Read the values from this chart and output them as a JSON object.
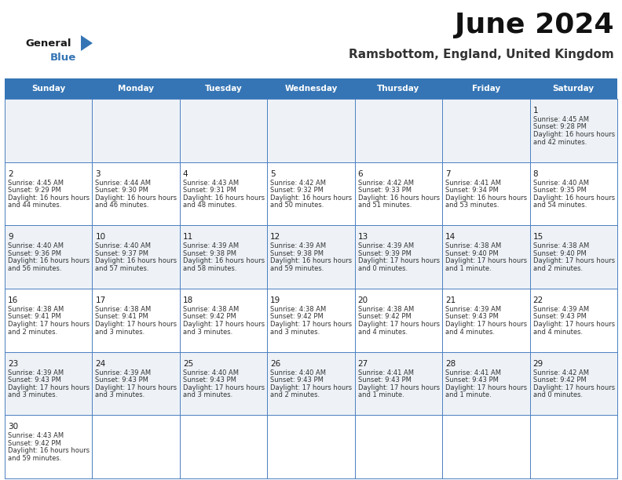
{
  "title": "June 2024",
  "subtitle": "Ramsbottom, England, United Kingdom",
  "days_of_week": [
    "Sunday",
    "Monday",
    "Tuesday",
    "Wednesday",
    "Thursday",
    "Friday",
    "Saturday"
  ],
  "header_bg": "#3575b5",
  "header_text": "#ffffff",
  "row0_bg": "#eef2f7",
  "row1_bg": "#ffffff",
  "grid_color": "#4a7fc0",
  "logo_general_color": "#1a1a1a",
  "logo_blue_color": "#3575b5",
  "day_num_color": "#1a1a1a",
  "cell_text_color": "#333333",
  "calendar_data": {
    "1": {
      "sunrise": "4:45 AM",
      "sunset": "9:28 PM",
      "daylight": "16 hours and 42 minutes."
    },
    "2": {
      "sunrise": "4:45 AM",
      "sunset": "9:29 PM",
      "daylight": "16 hours and 44 minutes."
    },
    "3": {
      "sunrise": "4:44 AM",
      "sunset": "9:30 PM",
      "daylight": "16 hours and 46 minutes."
    },
    "4": {
      "sunrise": "4:43 AM",
      "sunset": "9:31 PM",
      "daylight": "16 hours and 48 minutes."
    },
    "5": {
      "sunrise": "4:42 AM",
      "sunset": "9:32 PM",
      "daylight": "16 hours and 50 minutes."
    },
    "6": {
      "sunrise": "4:42 AM",
      "sunset": "9:33 PM",
      "daylight": "16 hours and 51 minutes."
    },
    "7": {
      "sunrise": "4:41 AM",
      "sunset": "9:34 PM",
      "daylight": "16 hours and 53 minutes."
    },
    "8": {
      "sunrise": "4:40 AM",
      "sunset": "9:35 PM",
      "daylight": "16 hours and 54 minutes."
    },
    "9": {
      "sunrise": "4:40 AM",
      "sunset": "9:36 PM",
      "daylight": "16 hours and 56 minutes."
    },
    "10": {
      "sunrise": "4:40 AM",
      "sunset": "9:37 PM",
      "daylight": "16 hours and 57 minutes."
    },
    "11": {
      "sunrise": "4:39 AM",
      "sunset": "9:38 PM",
      "daylight": "16 hours and 58 minutes."
    },
    "12": {
      "sunrise": "4:39 AM",
      "sunset": "9:38 PM",
      "daylight": "16 hours and 59 minutes."
    },
    "13": {
      "sunrise": "4:39 AM",
      "sunset": "9:39 PM",
      "daylight": "17 hours and 0 minutes."
    },
    "14": {
      "sunrise": "4:38 AM",
      "sunset": "9:40 PM",
      "daylight": "17 hours and 1 minute."
    },
    "15": {
      "sunrise": "4:38 AM",
      "sunset": "9:40 PM",
      "daylight": "17 hours and 2 minutes."
    },
    "16": {
      "sunrise": "4:38 AM",
      "sunset": "9:41 PM",
      "daylight": "17 hours and 2 minutes."
    },
    "17": {
      "sunrise": "4:38 AM",
      "sunset": "9:41 PM",
      "daylight": "17 hours and 3 minutes."
    },
    "18": {
      "sunrise": "4:38 AM",
      "sunset": "9:42 PM",
      "daylight": "17 hours and 3 minutes."
    },
    "19": {
      "sunrise": "4:38 AM",
      "sunset": "9:42 PM",
      "daylight": "17 hours and 3 minutes."
    },
    "20": {
      "sunrise": "4:38 AM",
      "sunset": "9:42 PM",
      "daylight": "17 hours and 4 minutes."
    },
    "21": {
      "sunrise": "4:39 AM",
      "sunset": "9:43 PM",
      "daylight": "17 hours and 4 minutes."
    },
    "22": {
      "sunrise": "4:39 AM",
      "sunset": "9:43 PM",
      "daylight": "17 hours and 4 minutes."
    },
    "23": {
      "sunrise": "4:39 AM",
      "sunset": "9:43 PM",
      "daylight": "17 hours and 3 minutes."
    },
    "24": {
      "sunrise": "4:39 AM",
      "sunset": "9:43 PM",
      "daylight": "17 hours and 3 minutes."
    },
    "25": {
      "sunrise": "4:40 AM",
      "sunset": "9:43 PM",
      "daylight": "17 hours and 3 minutes."
    },
    "26": {
      "sunrise": "4:40 AM",
      "sunset": "9:43 PM",
      "daylight": "17 hours and 2 minutes."
    },
    "27": {
      "sunrise": "4:41 AM",
      "sunset": "9:43 PM",
      "daylight": "17 hours and 1 minute."
    },
    "28": {
      "sunrise": "4:41 AM",
      "sunset": "9:43 PM",
      "daylight": "17 hours and 1 minute."
    },
    "29": {
      "sunrise": "4:42 AM",
      "sunset": "9:42 PM",
      "daylight": "17 hours and 0 minutes."
    },
    "30": {
      "sunrise": "4:43 AM",
      "sunset": "9:42 PM",
      "daylight": "16 hours and 59 minutes."
    }
  }
}
